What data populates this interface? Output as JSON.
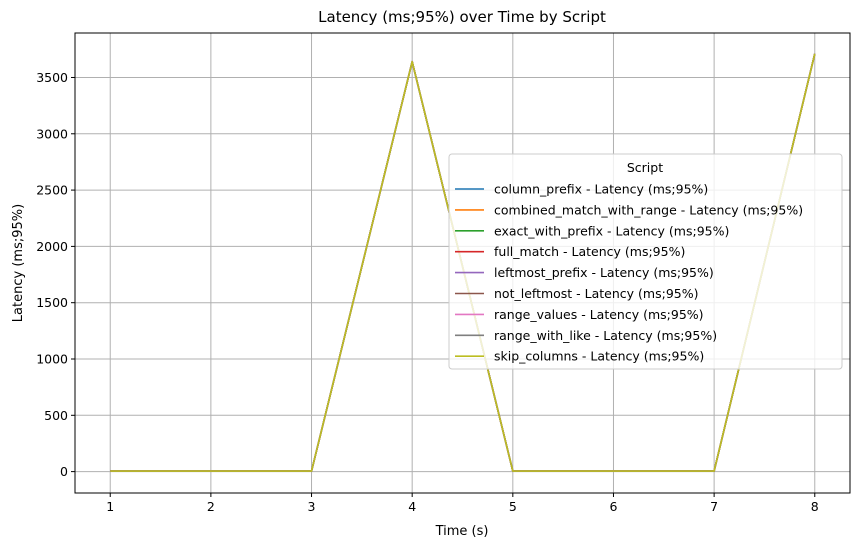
{
  "chart_data": {
    "type": "line",
    "title": "Latency (ms;95%) over Time by Script",
    "xlabel": "Time (s)",
    "ylabel": "Latency (ms;95%)",
    "x": [
      1,
      2,
      3,
      4,
      5,
      6,
      7,
      8
    ],
    "xticks": [
      1,
      2,
      3,
      4,
      5,
      6,
      7,
      8
    ],
    "yticks": [
      0,
      500,
      1000,
      1500,
      2000,
      2500,
      3000,
      3500
    ],
    "xlim": [
      0.65,
      8.35
    ],
    "ylim": [
      -190,
      3895
    ],
    "grid": true,
    "legend": {
      "title": "Script",
      "placement": "center-right"
    },
    "series": [
      {
        "name": "column_prefix - Latency (ms;95%)",
        "color": "#1f77b4",
        "values": [
          5,
          5,
          5,
          3640,
          5,
          5,
          5,
          3710
        ]
      },
      {
        "name": "combined_match_with_range - Latency (ms;95%)",
        "color": "#ff7f0e",
        "values": [
          5,
          5,
          5,
          3640,
          5,
          5,
          5,
          3710
        ]
      },
      {
        "name": "exact_with_prefix - Latency (ms;95%)",
        "color": "#2ca02c",
        "values": [
          5,
          5,
          5,
          3640,
          5,
          5,
          5,
          3710
        ]
      },
      {
        "name": "full_match - Latency (ms;95%)",
        "color": "#d62728",
        "values": [
          5,
          5,
          5,
          3640,
          5,
          5,
          5,
          3710
        ]
      },
      {
        "name": "leftmost_prefix - Latency (ms;95%)",
        "color": "#9467bd",
        "values": [
          5,
          5,
          5,
          3640,
          5,
          5,
          5,
          3710
        ]
      },
      {
        "name": "not_leftmost - Latency (ms;95%)",
        "color": "#8c564b",
        "values": [
          5,
          5,
          5,
          3640,
          5,
          5,
          5,
          3710
        ]
      },
      {
        "name": "range_values - Latency (ms;95%)",
        "color": "#e377c2",
        "values": [
          5,
          5,
          5,
          3640,
          5,
          5,
          5,
          3710
        ]
      },
      {
        "name": "range_with_like - Latency (ms;95%)",
        "color": "#7f7f7f",
        "values": [
          5,
          5,
          5,
          3640,
          5,
          5,
          5,
          3710
        ]
      },
      {
        "name": "skip_columns - Latency (ms;95%)",
        "color": "#bcbd22",
        "values": [
          5,
          5,
          5,
          3640,
          5,
          5,
          5,
          3710
        ]
      }
    ]
  }
}
